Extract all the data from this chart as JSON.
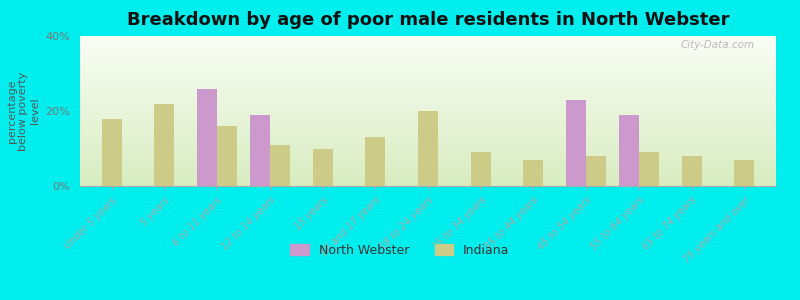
{
  "title": "Breakdown by age of poor male residents in North Webster",
  "ylabel": "percentage\nbelow poverty\nlevel",
  "categories": [
    "Under 5 years",
    "5 years",
    "6 to 11 years",
    "12 to 14 years",
    "15 years",
    "16 and 17 years",
    "18 to 24 years",
    "25 to 34 years",
    "35 to 44 years",
    "45 to 54 years",
    "55 to 64 years",
    "65 to 74 years",
    "75 years and over"
  ],
  "north_webster": [
    null,
    null,
    26.0,
    19.0,
    null,
    null,
    null,
    null,
    null,
    23.0,
    19.0,
    null,
    null
  ],
  "indiana": [
    18.0,
    22.0,
    16.0,
    11.0,
    10.0,
    13.0,
    20.0,
    9.0,
    7.0,
    8.0,
    9.0,
    8.0,
    7.0
  ],
  "nw_color": "#cc99cc",
  "indiana_color": "#cccc88",
  "background_color": "#00eeee",
  "title_color": "#1a1a1a",
  "bar_width": 0.38,
  "ylim": [
    0,
    40
  ],
  "yticks": [
    0,
    20,
    40
  ],
  "ytick_labels": [
    "0%",
    "20%",
    "40%"
  ],
  "watermark": "City-Data.com",
  "grad_top": "#f8fdf4",
  "grad_bottom": "#d8ecc0"
}
